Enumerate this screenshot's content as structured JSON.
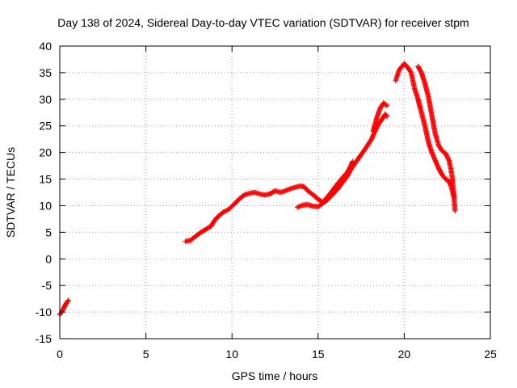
{
  "chart_data": {
    "type": "scatter",
    "title": "Day 138 of 2024, Sidereal Day-to-day VTEC variation (SDTVAR) for receiver stpm",
    "xlabel": "GPS time / hours",
    "ylabel": "SDTVAR / TECUs",
    "xlim": [
      0,
      25
    ],
    "ylim": [
      -15,
      40
    ],
    "xticks": [
      "0",
      "5",
      "10",
      "15",
      "20",
      "25"
    ],
    "yticks": [
      "-15",
      "-10",
      "-5",
      "0",
      "5",
      "10",
      "15",
      "20",
      "25",
      "30",
      "35",
      "40"
    ],
    "grid": true,
    "marker": "+",
    "colors": {
      "series": "#ff0000",
      "axis": "#000000",
      "grid": "#a0a0a0"
    },
    "series": [
      {
        "name": "SDTVAR",
        "segments": [
          [
            [
              0.0,
              -10.5
            ],
            [
              0.1,
              -10.0
            ],
            [
              0.2,
              -9.4
            ],
            [
              0.3,
              -8.8
            ],
            [
              0.4,
              -8.2
            ],
            [
              0.5,
              -7.8
            ]
          ],
          [
            [
              7.3,
              3.3
            ],
            [
              7.6,
              3.5
            ],
            [
              7.9,
              4.3
            ],
            [
              8.2,
              5.0
            ],
            [
              8.5,
              5.6
            ],
            [
              8.8,
              6.2
            ],
            [
              9.0,
              7.3
            ],
            [
              9.2,
              8.0
            ],
            [
              9.5,
              8.8
            ],
            [
              9.8,
              9.3
            ],
            [
              10.1,
              10.2
            ],
            [
              10.4,
              11.2
            ],
            [
              10.7,
              12.0
            ],
            [
              11.0,
              12.3
            ],
            [
              11.3,
              12.5
            ],
            [
              11.6,
              12.2
            ],
            [
              11.9,
              12.0
            ],
            [
              12.2,
              12.2
            ],
            [
              12.5,
              12.8
            ],
            [
              12.8,
              12.5
            ],
            [
              13.1,
              12.8
            ],
            [
              13.4,
              13.2
            ],
            [
              13.7,
              13.5
            ],
            [
              14.0,
              13.7
            ],
            [
              14.2,
              13.5
            ],
            [
              14.4,
              12.8
            ],
            [
              14.6,
              12.3
            ],
            [
              14.8,
              11.8
            ],
            [
              15.0,
              11.2
            ],
            [
              15.2,
              10.8
            ]
          ],
          [
            [
              13.8,
              9.7
            ],
            [
              14.1,
              10.1
            ],
            [
              14.4,
              10.2
            ],
            [
              14.7,
              9.9
            ],
            [
              15.0,
              9.8
            ],
            [
              15.2,
              10.3
            ],
            [
              15.5,
              11.0
            ],
            [
              15.8,
              12.0
            ],
            [
              16.1,
              13.0
            ],
            [
              16.4,
              14.3
            ],
            [
              16.7,
              15.6
            ],
            [
              16.9,
              16.8
            ],
            [
              17.1,
              17.8
            ],
            [
              17.3,
              18.7
            ],
            [
              17.5,
              19.6
            ],
            [
              17.8,
              21.0
            ],
            [
              18.1,
              22.5
            ],
            [
              18.3,
              24.0
            ],
            [
              18.5,
              25.3
            ],
            [
              18.7,
              26.2
            ],
            [
              18.9,
              27.2
            ],
            [
              19.0,
              26.8
            ]
          ],
          [
            [
              15.2,
              10.3
            ],
            [
              15.5,
              11.5
            ],
            [
              15.8,
              12.7
            ],
            [
              16.1,
              14.0
            ],
            [
              16.4,
              15.2
            ],
            [
              16.7,
              16.3
            ],
            [
              16.9,
              17.5
            ],
            [
              17.0,
              18.3
            ]
          ],
          [
            [
              18.2,
              24.0
            ],
            [
              18.4,
              26.5
            ],
            [
              18.6,
              28.3
            ],
            [
              18.8,
              29.3
            ],
            [
              19.0,
              28.8
            ]
          ],
          [
            [
              19.5,
              33.5
            ],
            [
              19.6,
              34.5
            ],
            [
              19.7,
              35.5
            ],
            [
              19.9,
              36.3
            ],
            [
              20.0,
              36.7
            ],
            [
              20.2,
              36.0
            ],
            [
              20.4,
              35.0
            ],
            [
              20.5,
              33.5
            ],
            [
              20.6,
              32.0
            ],
            [
              20.8,
              30.0
            ],
            [
              21.0,
              27.5
            ],
            [
              21.2,
              25.0
            ],
            [
              21.4,
              22.0
            ],
            [
              21.6,
              20.0
            ],
            [
              21.8,
              18.5
            ],
            [
              22.0,
              17.0
            ],
            [
              22.2,
              15.8
            ],
            [
              22.4,
              15.0
            ],
            [
              22.6,
              14.6
            ],
            [
              22.7,
              13.8
            ],
            [
              22.8,
              12.8
            ],
            [
              22.9,
              11.5
            ]
          ],
          [
            [
              20.8,
              36.2
            ],
            [
              21.0,
              35.0
            ],
            [
              21.2,
              33.0
            ],
            [
              21.4,
              30.5
            ],
            [
              21.6,
              27.0
            ],
            [
              21.8,
              23.5
            ],
            [
              22.0,
              21.3
            ],
            [
              22.2,
              20.3
            ],
            [
              22.4,
              19.8
            ],
            [
              22.6,
              18.5
            ],
            [
              22.7,
              17.0
            ],
            [
              22.8,
              15.0
            ],
            [
              22.85,
              13.0
            ],
            [
              22.9,
              11.0
            ],
            [
              22.95,
              9.0
            ]
          ]
        ]
      }
    ]
  }
}
